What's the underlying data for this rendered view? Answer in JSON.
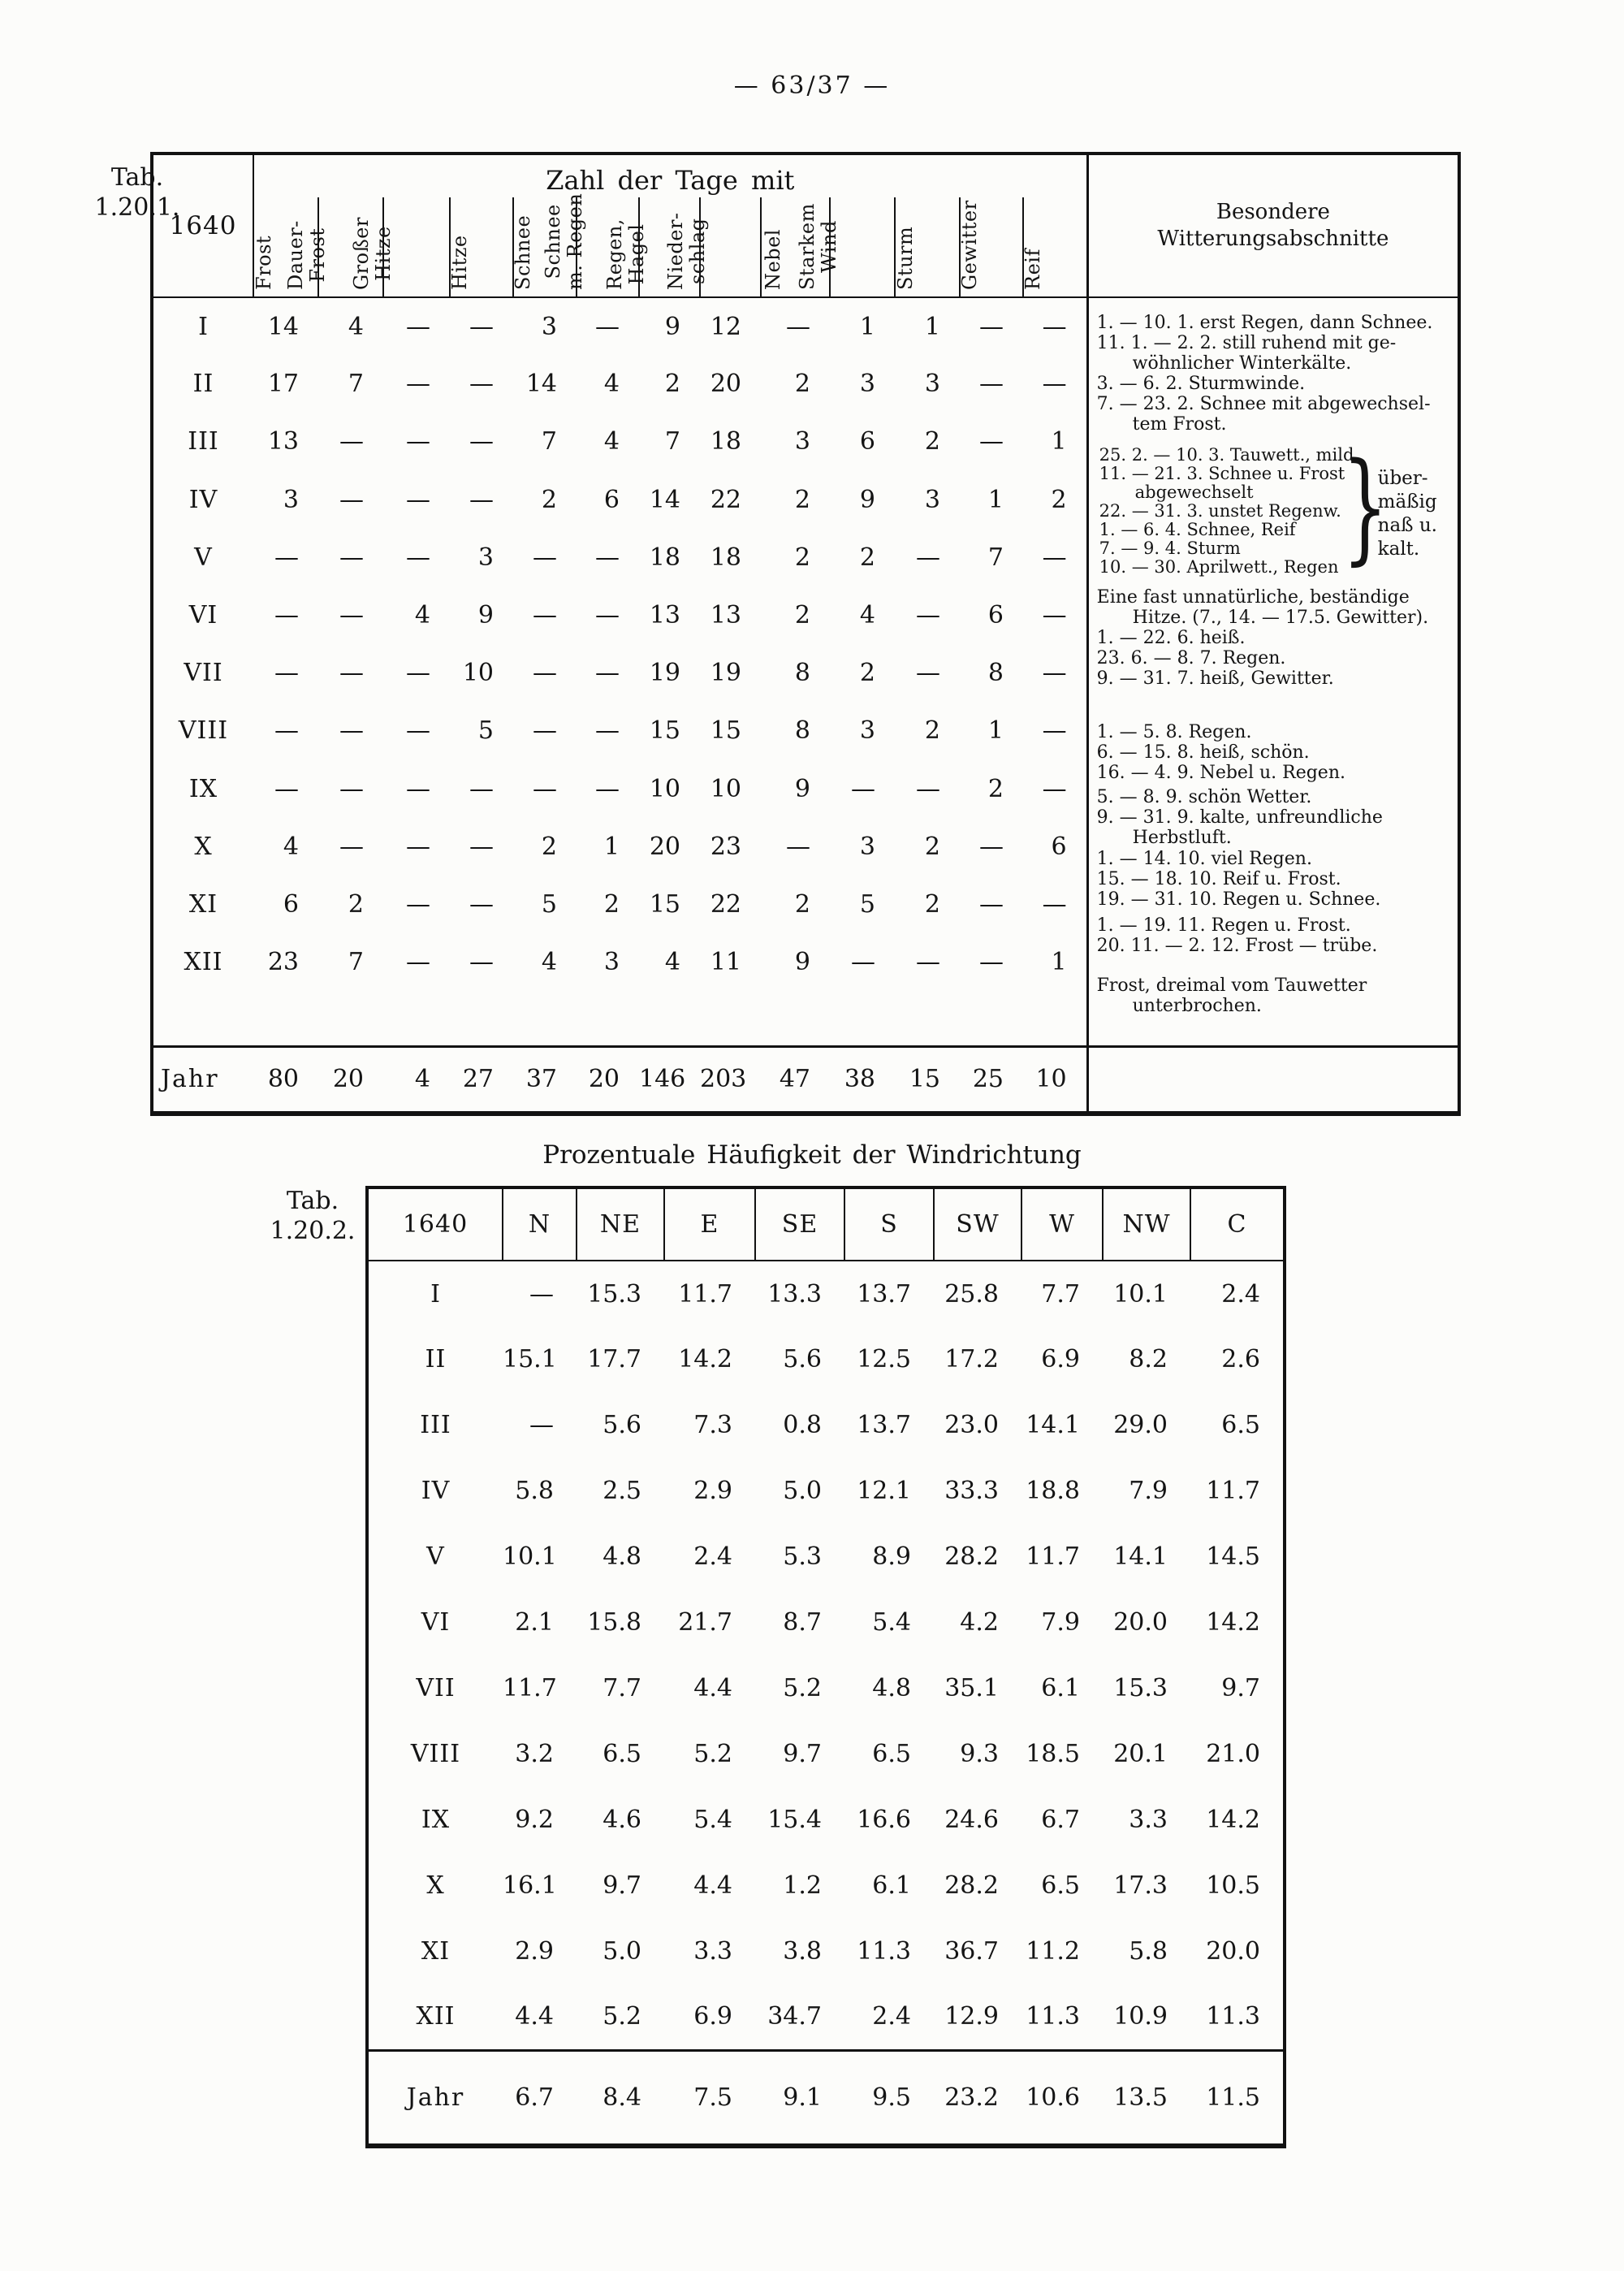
{
  "page": {
    "header_number": "— 63/37 —"
  },
  "table1": {
    "tab_label": [
      "Tab.",
      "1.20.1."
    ],
    "year": "1640",
    "title": "Zahl der Tage mit",
    "notes_header": [
      "Besondere",
      "Witterungsabschnitte"
    ],
    "columns": [
      {
        "id": "frost",
        "label": "Frost"
      },
      {
        "id": "dauer-frost",
        "label": "Dauer-\nFrost"
      },
      {
        "id": "grosser-hitze",
        "label": "Großer\nHitze"
      },
      {
        "id": "hitze",
        "label": "Hitze"
      },
      {
        "id": "schnee",
        "label": "Schnee"
      },
      {
        "id": "schnee-m-regen",
        "label": "Schnee\nm. Regen"
      },
      {
        "id": "regen-hagel",
        "label": "Regen,\nHagel"
      },
      {
        "id": "niederschlag",
        "label": "Nieder-\nschlag"
      },
      {
        "id": "nebel",
        "label": "Nebel"
      },
      {
        "id": "starkem-wind",
        "label": "Starkem\nWind"
      },
      {
        "id": "sturm",
        "label": "Sturm"
      },
      {
        "id": "gewitter",
        "label": "Gewitter"
      },
      {
        "id": "reif",
        "label": "Reif"
      }
    ],
    "rows": [
      {
        "month": "I",
        "values": [
          "14",
          "4",
          "—",
          "—",
          "3",
          "—",
          "9",
          "12",
          "—",
          "1",
          "1",
          "—",
          "—"
        ]
      },
      {
        "month": "II",
        "values": [
          "17",
          "7",
          "—",
          "—",
          "14",
          "4",
          "2",
          "20",
          "2",
          "3",
          "3",
          "—",
          "—"
        ]
      },
      {
        "month": "III",
        "values": [
          "13",
          "—",
          "—",
          "—",
          "7",
          "4",
          "7",
          "18",
          "3",
          "6",
          "2",
          "—",
          "1"
        ]
      },
      {
        "month": "IV",
        "values": [
          "3",
          "—",
          "—",
          "—",
          "2",
          "6",
          "14",
          "22",
          "2",
          "9",
          "3",
          "1",
          "2"
        ]
      },
      {
        "month": "V",
        "values": [
          "—",
          "—",
          "—",
          "3",
          "—",
          "—",
          "18",
          "18",
          "2",
          "2",
          "—",
          "7",
          "—"
        ]
      },
      {
        "month": "VI",
        "values": [
          "—",
          "—",
          "4",
          "9",
          "—",
          "—",
          "13",
          "13",
          "2",
          "4",
          "—",
          "6",
          "—"
        ]
      },
      {
        "month": "VII",
        "values": [
          "—",
          "—",
          "—",
          "10",
          "—",
          "—",
          "19",
          "19",
          "8",
          "2",
          "—",
          "8",
          "—"
        ]
      },
      {
        "month": "VIII",
        "values": [
          "—",
          "—",
          "—",
          "5",
          "—",
          "—",
          "15",
          "15",
          "8",
          "3",
          "2",
          "1",
          "—"
        ]
      },
      {
        "month": "IX",
        "values": [
          "—",
          "—",
          "—",
          "—",
          "—",
          "—",
          "10",
          "10",
          "9",
          "—",
          "—",
          "2",
          "—"
        ]
      },
      {
        "month": "X",
        "values": [
          "4",
          "—",
          "—",
          "—",
          "2",
          "1",
          "20",
          "23",
          "—",
          "3",
          "2",
          "—",
          "6"
        ]
      },
      {
        "month": "XI",
        "values": [
          "6",
          "2",
          "—",
          "—",
          "5",
          "2",
          "15",
          "22",
          "2",
          "5",
          "2",
          "—",
          "—"
        ]
      },
      {
        "month": "XII",
        "values": [
          "23",
          "7",
          "—",
          "—",
          "4",
          "3",
          "4",
          "11",
          "9",
          "—",
          "—",
          "—",
          "1"
        ]
      }
    ],
    "jahr": {
      "label": "Jahr",
      "values": [
        "80",
        "20",
        "4",
        "27",
        "37",
        "20",
        "146",
        "203",
        "47",
        "38",
        "15",
        "25",
        "10"
      ]
    },
    "notes_blocks": [
      {
        "lines": [
          {
            "t": "1. — 10. 1. erst Regen, dann Schnee."
          },
          {
            "t": "11. 1. — 2. 2. still ruhend mit ge-"
          },
          {
            "t": "wöhnlicher Winterkälte.",
            "indent": true
          },
          {
            "t": "3. — 6. 2. Sturmwinde."
          },
          {
            "t": "7. — 23. 2. Schnee mit abgewechsel-"
          },
          {
            "t": "tem Frost.",
            "indent": true
          }
        ]
      },
      {
        "small": true,
        "lines": [
          {
            "t": "25. 2. — 10. 3. Tauwett., mild"
          },
          {
            "t": "11. — 21. 3. Schnee u. Frost"
          },
          {
            "t": "abgewechselt",
            "indent": true
          },
          {
            "t": "22. — 31. 3. unstet Regenw."
          },
          {
            "t": "1. — 6. 4. Schnee, Reif"
          },
          {
            "t": "7. — 9. 4. Sturm"
          },
          {
            "t": "10. — 30. Aprilwett., Regen"
          }
        ]
      },
      {
        "lines": [
          {
            "t": "Eine fast unnatürliche, beständige"
          },
          {
            "t": "Hitze. (7., 14. — 17.5. Gewitter).",
            "indent": true
          },
          {
            "t": "1. — 22. 6. heiß."
          },
          {
            "t": "23. 6. — 8. 7. Regen."
          },
          {
            "t": "9. — 31. 7. heiß, Gewitter."
          }
        ]
      },
      {
        "lines": [
          {
            "t": "1. — 5. 8. Regen."
          },
          {
            "t": "6. — 15. 8. heiß, schön."
          },
          {
            "t": "16. — 4. 9. Nebel u. Regen."
          }
        ]
      },
      {
        "lines": [
          {
            "t": "5. — 8. 9. schön Wetter."
          },
          {
            "t": "9. — 31. 9. kalte, unfreundliche"
          },
          {
            "t": "Herbstluft.",
            "indent": true
          }
        ]
      },
      {
        "lines": [
          {
            "t": "1. — 14. 10. viel Regen."
          },
          {
            "t": "15. — 18. 10. Reif u. Frost."
          },
          {
            "t": "19. — 31. 10. Regen u. Schnee."
          }
        ]
      },
      {
        "lines": [
          {
            "t": "1. — 19. 11. Regen u. Frost."
          },
          {
            "t": "20. 11. — 2. 12. Frost — trübe."
          }
        ]
      },
      {
        "lines": [
          {
            "t": "Frost, dreimal vom Tauwetter"
          },
          {
            "t": "unterbrochen.",
            "indent": true
          }
        ]
      }
    ],
    "brace": {
      "glyph": "}",
      "lines": [
        "über-",
        "mäßig",
        "naß u.",
        "kalt."
      ]
    }
  },
  "table2": {
    "tab_label": [
      "Tab.",
      "1.20.2."
    ],
    "title": "Prozentuale Häufigkeit der Windrichtung",
    "year": "1640",
    "directions": [
      "N",
      "NE",
      "E",
      "SE",
      "S",
      "SW",
      "W",
      "NW",
      "C"
    ],
    "rows": [
      {
        "month": "I",
        "values": [
          "—",
          "15.3",
          "11.7",
          "13.3",
          "13.7",
          "25.8",
          "7.7",
          "10.1",
          "2.4"
        ]
      },
      {
        "month": "II",
        "values": [
          "15.1",
          "17.7",
          "14.2",
          "5.6",
          "12.5",
          "17.2",
          "6.9",
          "8.2",
          "2.6"
        ]
      },
      {
        "month": "III",
        "values": [
          "—",
          "5.6",
          "7.3",
          "0.8",
          "13.7",
          "23.0",
          "14.1",
          "29.0",
          "6.5"
        ]
      },
      {
        "month": "IV",
        "values": [
          "5.8",
          "2.5",
          "2.9",
          "5.0",
          "12.1",
          "33.3",
          "18.8",
          "7.9",
          "11.7"
        ]
      },
      {
        "month": "V",
        "values": [
          "10.1",
          "4.8",
          "2.4",
          "5.3",
          "8.9",
          "28.2",
          "11.7",
          "14.1",
          "14.5"
        ]
      },
      {
        "month": "VI",
        "values": [
          "2.1",
          "15.8",
          "21.7",
          "8.7",
          "5.4",
          "4.2",
          "7.9",
          "20.0",
          "14.2"
        ]
      },
      {
        "month": "VII",
        "values": [
          "11.7",
          "7.7",
          "4.4",
          "5.2",
          "4.8",
          "35.1",
          "6.1",
          "15.3",
          "9.7"
        ]
      },
      {
        "month": "VIII",
        "values": [
          "3.2",
          "6.5",
          "5.2",
          "9.7",
          "6.5",
          "9.3",
          "18.5",
          "20.1",
          "21.0"
        ]
      },
      {
        "month": "IX",
        "values": [
          "9.2",
          "4.6",
          "5.4",
          "15.4",
          "16.6",
          "24.6",
          "6.7",
          "3.3",
          "14.2"
        ]
      },
      {
        "month": "X",
        "values": [
          "16.1",
          "9.7",
          "4.4",
          "1.2",
          "6.1",
          "28.2",
          "6.5",
          "17.3",
          "10.5"
        ]
      },
      {
        "month": "XI",
        "values": [
          "2.9",
          "5.0",
          "3.3",
          "3.8",
          "11.3",
          "36.7",
          "11.2",
          "5.8",
          "20.0"
        ]
      },
      {
        "month": "XII",
        "values": [
          "4.4",
          "5.2",
          "6.9",
          "34.7",
          "2.4",
          "12.9",
          "11.3",
          "10.9",
          "11.3"
        ]
      }
    ],
    "jahr": {
      "label": "Jahr",
      "values": [
        "6.7",
        "8.4",
        "7.5",
        "9.1",
        "9.5",
        "23.2",
        "10.6",
        "13.5",
        "11.5"
      ]
    }
  }
}
